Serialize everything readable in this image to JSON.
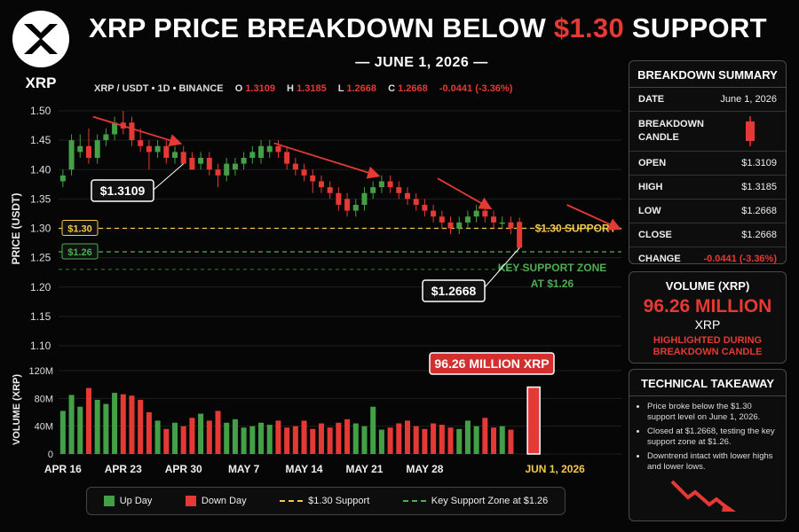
{
  "logo": {
    "text": "XRP"
  },
  "title": {
    "main": "XRP PRICE BREAKDOWN BELOW ",
    "highlight": "$1.30",
    "tail": " SUPPORT",
    "date": "— JUNE 1, 2026 —"
  },
  "ohlc_bar": {
    "pair": "XRP / USDT • 1D • BINANCE",
    "o_label": "O",
    "o": "1.3109",
    "h_label": "H",
    "h": "1.3185",
    "l_label": "L",
    "l": "1.2668",
    "c_label": "C",
    "c": "1.2668",
    "change": "-0.0441 (-3.36%)"
  },
  "colors": {
    "up": "#43a047",
    "down": "#e53935",
    "support": "#f2c94c",
    "zone": "#4caf50",
    "bg": "#060606"
  },
  "chart_data": {
    "type": "candlestick",
    "ylabel": "PRICE (USDT)",
    "ylim": [
      1.1,
      1.5
    ],
    "yticks": [
      "1.50",
      "1.45",
      "1.40",
      "1.35",
      "1.30",
      "1.25",
      "1.20",
      "1.15",
      "1.10"
    ],
    "xticks": [
      "APR 16",
      "APR 23",
      "APR 30",
      "MAY 7",
      "MAY 14",
      "MAY 21",
      "MAY 28",
      "JUN 1, 2026"
    ],
    "grid": true,
    "candles": [
      [
        1.38,
        1.4,
        1.37,
        1.39
      ],
      [
        1.4,
        1.46,
        1.39,
        1.45
      ],
      [
        1.43,
        1.46,
        1.42,
        1.44
      ],
      [
        1.44,
        1.47,
        1.41,
        1.42
      ],
      [
        1.42,
        1.46,
        1.41,
        1.45
      ],
      [
        1.45,
        1.47,
        1.44,
        1.46
      ],
      [
        1.46,
        1.49,
        1.45,
        1.48
      ],
      [
        1.48,
        1.5,
        1.46,
        1.47
      ],
      [
        1.48,
        1.49,
        1.44,
        1.45
      ],
      [
        1.45,
        1.47,
        1.43,
        1.44
      ],
      [
        1.44,
        1.45,
        1.4,
        1.43
      ],
      [
        1.43,
        1.45,
        1.42,
        1.44
      ],
      [
        1.44,
        1.45,
        1.41,
        1.42
      ],
      [
        1.42,
        1.44,
        1.41,
        1.43
      ],
      [
        1.43,
        1.44,
        1.41,
        1.41
      ],
      [
        1.42,
        1.43,
        1.4,
        1.4
      ],
      [
        1.41,
        1.43,
        1.4,
        1.42
      ],
      [
        1.42,
        1.43,
        1.39,
        1.4
      ],
      [
        1.4,
        1.41,
        1.37,
        1.39
      ],
      [
        1.39,
        1.42,
        1.38,
        1.41
      ],
      [
        1.4,
        1.42,
        1.39,
        1.41
      ],
      [
        1.41,
        1.43,
        1.4,
        1.42
      ],
      [
        1.42,
        1.44,
        1.41,
        1.43
      ],
      [
        1.42,
        1.45,
        1.41,
        1.44
      ],
      [
        1.43,
        1.45,
        1.42,
        1.44
      ],
      [
        1.44,
        1.45,
        1.42,
        1.43
      ],
      [
        1.43,
        1.44,
        1.4,
        1.41
      ],
      [
        1.41,
        1.42,
        1.39,
        1.4
      ],
      [
        1.4,
        1.41,
        1.38,
        1.39
      ],
      [
        1.39,
        1.4,
        1.36,
        1.38
      ],
      [
        1.38,
        1.39,
        1.36,
        1.37
      ],
      [
        1.37,
        1.38,
        1.35,
        1.36
      ],
      [
        1.36,
        1.37,
        1.33,
        1.34
      ],
      [
        1.35,
        1.36,
        1.32,
        1.33
      ],
      [
        1.33,
        1.35,
        1.32,
        1.34
      ],
      [
        1.34,
        1.37,
        1.33,
        1.36
      ],
      [
        1.36,
        1.38,
        1.35,
        1.37
      ],
      [
        1.37,
        1.39,
        1.36,
        1.38
      ],
      [
        1.38,
        1.39,
        1.36,
        1.37
      ],
      [
        1.37,
        1.38,
        1.35,
        1.36
      ],
      [
        1.36,
        1.37,
        1.34,
        1.35
      ],
      [
        1.35,
        1.36,
        1.33,
        1.34
      ],
      [
        1.34,
        1.35,
        1.32,
        1.33
      ],
      [
        1.33,
        1.34,
        1.31,
        1.32
      ],
      [
        1.32,
        1.33,
        1.3,
        1.31
      ],
      [
        1.31,
        1.32,
        1.29,
        1.3
      ],
      [
        1.3,
        1.32,
        1.29,
        1.31
      ],
      [
        1.31,
        1.33,
        1.3,
        1.32
      ],
      [
        1.32,
        1.34,
        1.31,
        1.33
      ],
      [
        1.33,
        1.34,
        1.31,
        1.32
      ],
      [
        1.32,
        1.33,
        1.3,
        1.31
      ],
      [
        1.31,
        1.32,
        1.3,
        1.31
      ],
      [
        1.31,
        1.32,
        1.29,
        1.3
      ],
      [
        1.3109,
        1.3185,
        1.2668,
        1.2668
      ]
    ],
    "volume": {
      "ylabel": "VOLUME (XRP)",
      "ylim": [
        0,
        120
      ],
      "yticks": [
        "120M",
        "80M",
        "40M",
        "0"
      ],
      "values": [
        62,
        85,
        68,
        95,
        78,
        72,
        88,
        86,
        84,
        78,
        60,
        48,
        36,
        45,
        40,
        52,
        58,
        48,
        62,
        45,
        50,
        38,
        40,
        45,
        42,
        48,
        38,
        40,
        48,
        36,
        44,
        38,
        45,
        50,
        44,
        40,
        68,
        35,
        38,
        44,
        48,
        40,
        36,
        44,
        42,
        38,
        36,
        48,
        40,
        52,
        38,
        40,
        35,
        96.26
      ]
    },
    "support_level": {
      "value": 1.3,
      "tag": "$1.30",
      "label": "$1.30 SUPPORT"
    },
    "key_zone": {
      "value": 1.26,
      "tag": "$1.26",
      "label": "KEY SUPPORT ZONE AT $1.26"
    },
    "annotations": {
      "open_callout": "$1.3109",
      "close_callout": "$1.2668",
      "volume_callout": "96.26 MILLION XRP"
    }
  },
  "summary": {
    "title": "BREAKDOWN SUMMARY",
    "rows": [
      {
        "k": "DATE",
        "v": "June 1, 2026"
      },
      {
        "k": "BREAKDOWN CANDLE",
        "v": ""
      },
      {
        "k": "OPEN",
        "v": "$1.3109"
      },
      {
        "k": "HIGH",
        "v": "$1.3185"
      },
      {
        "k": "LOW",
        "v": "$1.2668"
      },
      {
        "k": "CLOSE",
        "v": "$1.2668"
      },
      {
        "k": "CHANGE",
        "v": "-0.0441 (-3.36%)"
      }
    ]
  },
  "volume_panel": {
    "title": "VOLUME (XRP)",
    "number": "96.26 MILLION",
    "unit": "XRP",
    "note": "HIGHLIGHTED DURING BREAKDOWN CANDLE"
  },
  "takeaway": {
    "title": "TECHNICAL TAKEAWAY",
    "bullets": [
      "Price broke below the $1.30 support level on June 1, 2026.",
      "Closed at $1.2668, testing the key support zone at $1.26.",
      "Downtrend intact with lower highs and lower lows."
    ]
  },
  "legend": {
    "up": "Up Day",
    "down": "Down Day",
    "support": "$1.30 Support",
    "zone": "Key Support Zone at $1.26"
  }
}
